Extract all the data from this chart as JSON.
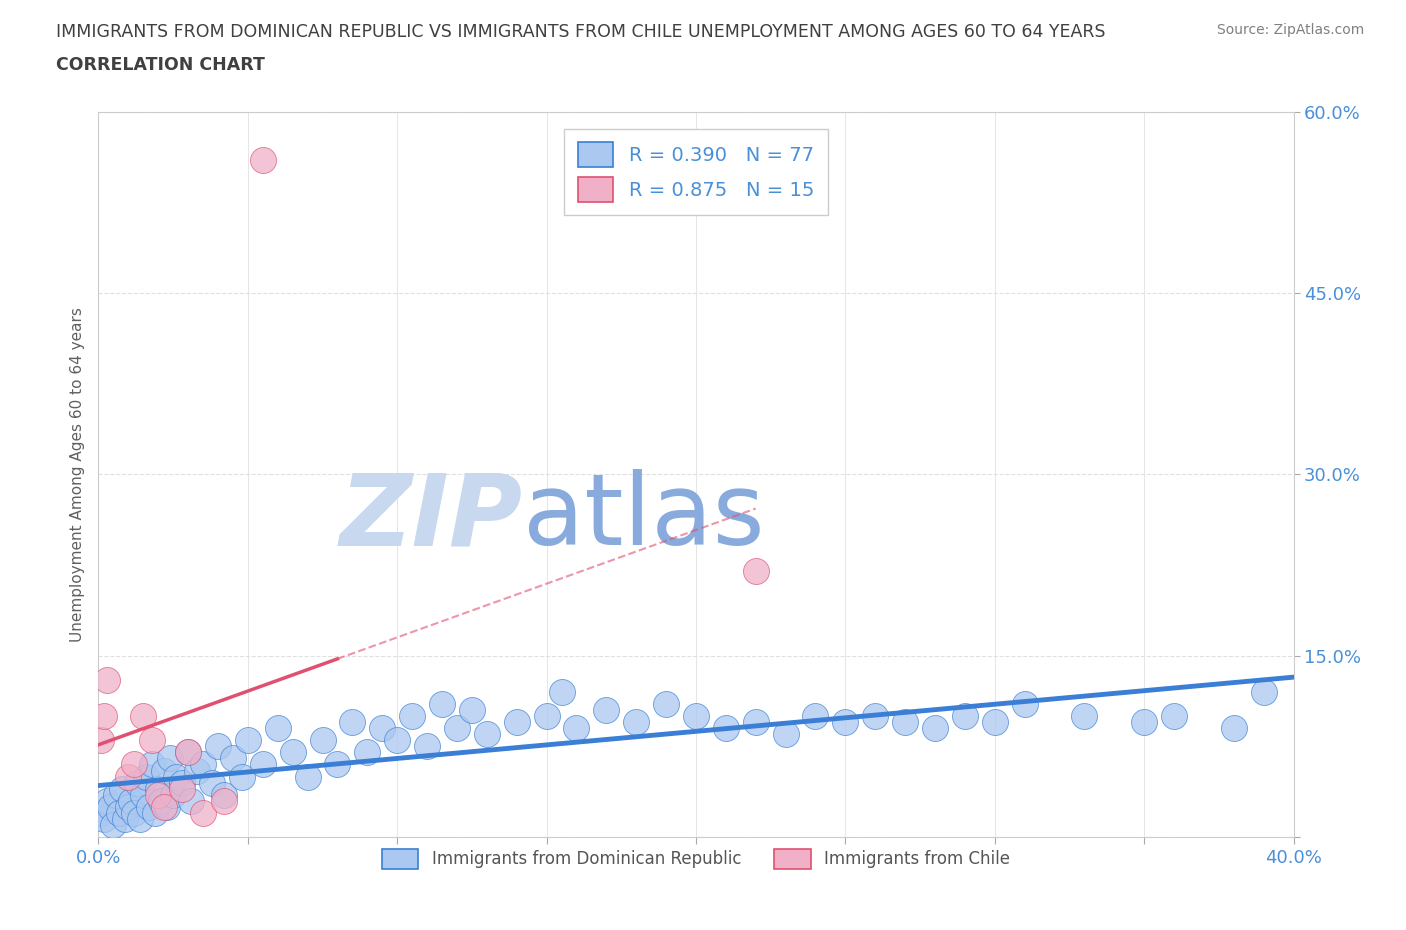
{
  "title_line1": "IMMIGRANTS FROM DOMINICAN REPUBLIC VS IMMIGRANTS FROM CHILE UNEMPLOYMENT AMONG AGES 60 TO 64 YEARS",
  "title_line2": "CORRELATION CHART",
  "source": "Source: ZipAtlas.com",
  "ylabel": "Unemployment Among Ages 60 to 64 years",
  "xlim": [
    0.0,
    0.4
  ],
  "ylim": [
    0.0,
    0.6
  ],
  "xticks": [
    0.0,
    0.05,
    0.1,
    0.15,
    0.2,
    0.25,
    0.3,
    0.35,
    0.4
  ],
  "yticks": [
    0.0,
    0.15,
    0.3,
    0.45,
    0.6
  ],
  "legend_r1": "R = 0.390",
  "legend_n1": "N = 77",
  "legend_r2": "R = 0.875",
  "legend_n2": "N = 15",
  "color_dr": "#aac8f0",
  "color_chile": "#f0b0c8",
  "trendline_dr_color": "#3a7fd5",
  "trendline_chile_color": "#e05070",
  "watermark_zip_color": "#c8d8ee",
  "watermark_atlas_color": "#88aadd",
  "background_color": "#ffffff",
  "grid_color": "#e0e0e0",
  "tick_label_color": "#4a90d9",
  "title_color": "#404040",
  "ylabel_color": "#606060",
  "source_color": "#808080",
  "dr_x": [
    0.001,
    0.002,
    0.003,
    0.004,
    0.005,
    0.006,
    0.007,
    0.008,
    0.009,
    0.01,
    0.011,
    0.012,
    0.013,
    0.014,
    0.015,
    0.016,
    0.017,
    0.018,
    0.019,
    0.02,
    0.021,
    0.022,
    0.023,
    0.024,
    0.025,
    0.026,
    0.028,
    0.03,
    0.031,
    0.033,
    0.035,
    0.038,
    0.04,
    0.042,
    0.045,
    0.048,
    0.05,
    0.055,
    0.06,
    0.065,
    0.07,
    0.075,
    0.08,
    0.085,
    0.09,
    0.095,
    0.1,
    0.105,
    0.11,
    0.115,
    0.12,
    0.125,
    0.13,
    0.14,
    0.15,
    0.155,
    0.16,
    0.17,
    0.18,
    0.19,
    0.2,
    0.21,
    0.22,
    0.23,
    0.24,
    0.25,
    0.26,
    0.27,
    0.28,
    0.29,
    0.3,
    0.31,
    0.33,
    0.35,
    0.36,
    0.38,
    0.39
  ],
  "dr_y": [
    0.02,
    0.015,
    0.03,
    0.025,
    0.01,
    0.035,
    0.02,
    0.04,
    0.015,
    0.025,
    0.03,
    0.02,
    0.045,
    0.015,
    0.035,
    0.05,
    0.025,
    0.06,
    0.02,
    0.04,
    0.03,
    0.055,
    0.025,
    0.065,
    0.035,
    0.05,
    0.045,
    0.07,
    0.03,
    0.055,
    0.06,
    0.045,
    0.075,
    0.035,
    0.065,
    0.05,
    0.08,
    0.06,
    0.09,
    0.07,
    0.05,
    0.08,
    0.06,
    0.095,
    0.07,
    0.09,
    0.08,
    0.1,
    0.075,
    0.11,
    0.09,
    0.105,
    0.085,
    0.095,
    0.1,
    0.12,
    0.09,
    0.105,
    0.095,
    0.11,
    0.1,
    0.09,
    0.095,
    0.085,
    0.1,
    0.095,
    0.1,
    0.095,
    0.09,
    0.1,
    0.095,
    0.11,
    0.1,
    0.095,
    0.1,
    0.09,
    0.12
  ],
  "chile_x": [
    0.001,
    0.002,
    0.003,
    0.01,
    0.012,
    0.015,
    0.018,
    0.02,
    0.022,
    0.028,
    0.03,
    0.035,
    0.042,
    0.055,
    0.22
  ],
  "chile_y": [
    0.08,
    0.1,
    0.13,
    0.05,
    0.06,
    0.1,
    0.08,
    0.035,
    0.025,
    0.04,
    0.07,
    0.02,
    0.03,
    0.56,
    0.22
  ]
}
